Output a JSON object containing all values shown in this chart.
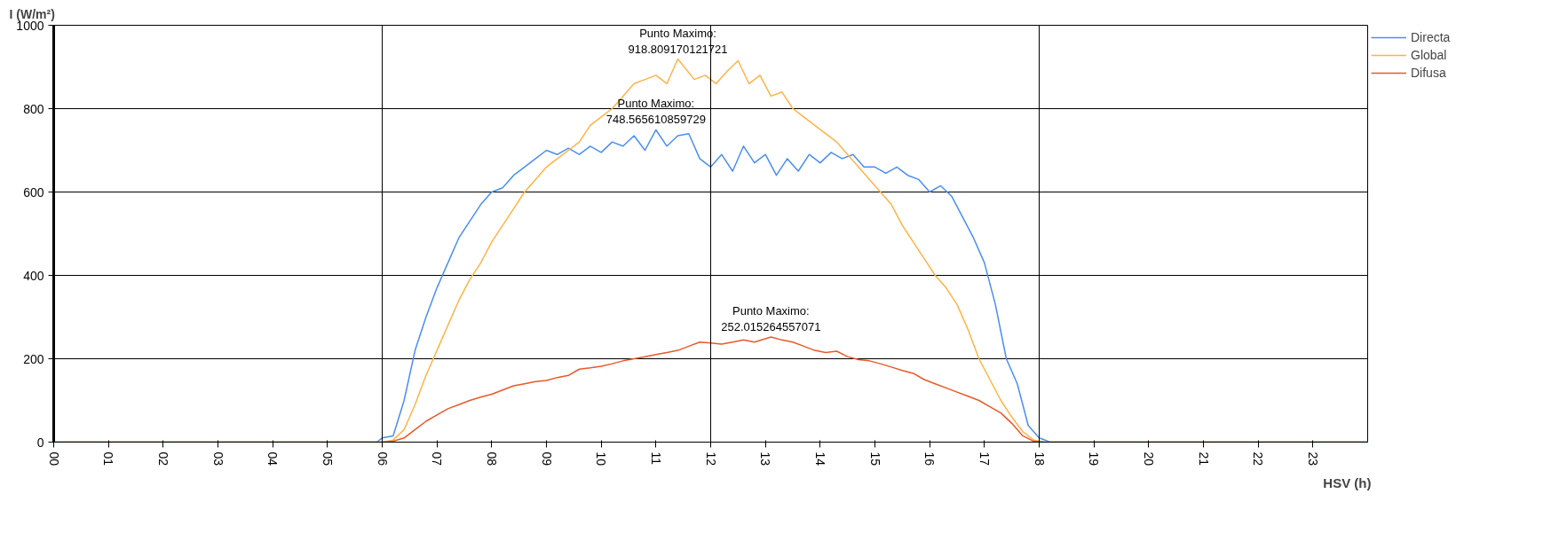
{
  "chart_data": {
    "type": "line",
    "xlabel": "HSV (h)",
    "ylabel": "I (W/m²)",
    "xlim": [
      0,
      24
    ],
    "ylim": [
      0,
      1000
    ],
    "xticks": [
      {
        "value": 0,
        "label": "00"
      },
      {
        "value": 1,
        "label": "01"
      },
      {
        "value": 2,
        "label": "02"
      },
      {
        "value": 3,
        "label": "03"
      },
      {
        "value": 4,
        "label": "04"
      },
      {
        "value": 5,
        "label": "05"
      },
      {
        "value": 6,
        "label": "06"
      },
      {
        "value": 7,
        "label": "07"
      },
      {
        "value": 8,
        "label": "08"
      },
      {
        "value": 9,
        "label": "09"
      },
      {
        "value": 10,
        "label": "10"
      },
      {
        "value": 11,
        "label": "11"
      },
      {
        "value": 12,
        "label": "12"
      },
      {
        "value": 13,
        "label": "13"
      },
      {
        "value": 14,
        "label": "14"
      },
      {
        "value": 15,
        "label": "15"
      },
      {
        "value": 16,
        "label": "16"
      },
      {
        "value": 17,
        "label": "17"
      },
      {
        "value": 18,
        "label": "18"
      },
      {
        "value": 19,
        "label": "19"
      },
      {
        "value": 20,
        "label": "20"
      },
      {
        "value": 21,
        "label": "21"
      },
      {
        "value": 22,
        "label": "22"
      },
      {
        "value": 23,
        "label": "23"
      }
    ],
    "yticks": [
      0,
      200,
      400,
      600,
      800,
      1000
    ],
    "grid": "y",
    "legend": "top right",
    "marker": "none",
    "line_style": "solid",
    "ref_lines": [
      {
        "axis": "x",
        "value": 6,
        "color": "#000000"
      },
      {
        "axis": "x",
        "value": 12,
        "color": "#000000"
      },
      {
        "axis": "x",
        "value": 18,
        "color": "#000000"
      }
    ],
    "annotations": [
      {
        "text": "Punto Maximo:\n918.809170121721",
        "x": 11.4,
        "y": 919
      },
      {
        "text": "Punto Maximo:\n748.565610859729",
        "x": 11.0,
        "y": 749
      },
      {
        "text": "Punto Maximo:\n252.015264557071",
        "x": 13.1,
        "y": 252
      }
    ],
    "series": [
      {
        "name": "Directa",
        "color": "#4a8ef0",
        "x": [
          0,
          5.9,
          6.0,
          6.2,
          6.4,
          6.6,
          6.8,
          7.0,
          7.2,
          7.4,
          7.6,
          7.8,
          8.0,
          8.2,
          8.4,
          8.6,
          8.8,
          9.0,
          9.2,
          9.4,
          9.6,
          9.8,
          10.0,
          10.2,
          10.4,
          10.6,
          10.8,
          11.0,
          11.2,
          11.4,
          11.6,
          11.8,
          12.0,
          12.2,
          12.4,
          12.6,
          12.8,
          13.0,
          13.2,
          13.4,
          13.6,
          13.8,
          14.0,
          14.2,
          14.4,
          14.6,
          14.8,
          15.0,
          15.2,
          15.4,
          15.6,
          15.8,
          16.0,
          16.2,
          16.4,
          16.6,
          16.8,
          17.0,
          17.2,
          17.4,
          17.6,
          17.8,
          18.0,
          18.2,
          24
        ],
        "values": [
          0,
          0,
          10,
          15,
          100,
          220,
          300,
          370,
          430,
          490,
          530,
          570,
          600,
          610,
          640,
          660,
          680,
          700,
          690,
          705,
          690,
          710,
          695,
          720,
          710,
          735,
          700,
          749,
          710,
          735,
          740,
          680,
          660,
          690,
          650,
          710,
          670,
          690,
          640,
          680,
          650,
          690,
          670,
          695,
          680,
          690,
          660,
          660,
          645,
          660,
          640,
          630,
          600,
          615,
          590,
          540,
          490,
          430,
          330,
          200,
          140,
          40,
          10,
          0,
          0
        ]
      },
      {
        "name": "Global",
        "color": "#ffb347",
        "x": [
          0,
          6.0,
          6.2,
          6.4,
          6.6,
          6.8,
          7.0,
          7.2,
          7.4,
          7.6,
          7.8,
          8.0,
          8.2,
          8.4,
          8.6,
          8.8,
          9.0,
          9.2,
          9.4,
          9.6,
          9.8,
          10.0,
          10.2,
          10.4,
          10.6,
          10.8,
          11.0,
          11.2,
          11.4,
          11.7,
          11.9,
          12.1,
          12.3,
          12.5,
          12.7,
          12.9,
          13.1,
          13.3,
          13.5,
          13.7,
          13.9,
          14.1,
          14.3,
          14.5,
          14.7,
          14.9,
          15.1,
          15.3,
          15.5,
          15.7,
          15.9,
          16.1,
          16.3,
          16.5,
          16.7,
          16.9,
          17.1,
          17.3,
          17.5,
          17.7,
          17.9,
          18.1,
          24
        ],
        "values": [
          0,
          0,
          5,
          30,
          90,
          160,
          220,
          280,
          340,
          390,
          430,
          480,
          520,
          560,
          600,
          630,
          660,
          680,
          700,
          720,
          760,
          780,
          800,
          830,
          860,
          870,
          880,
          860,
          919,
          870,
          880,
          860,
          890,
          915,
          860,
          880,
          830,
          840,
          800,
          780,
          760,
          740,
          720,
          690,
          660,
          630,
          600,
          570,
          520,
          480,
          440,
          400,
          370,
          330,
          270,
          200,
          150,
          100,
          60,
          25,
          5,
          0,
          0
        ]
      },
      {
        "name": "Difusa",
        "color": "#e8582a",
        "x": [
          0,
          6.0,
          6.2,
          6.4,
          6.6,
          6.8,
          7.0,
          7.2,
          7.4,
          7.6,
          7.8,
          8.0,
          8.2,
          8.4,
          8.6,
          8.8,
          9.0,
          9.2,
          9.4,
          9.6,
          9.8,
          10.0,
          10.2,
          10.4,
          10.6,
          10.8,
          11.0,
          11.2,
          11.4,
          11.6,
          11.8,
          12.0,
          12.2,
          12.4,
          12.6,
          12.8,
          13.1,
          13.3,
          13.5,
          13.7,
          13.9,
          14.1,
          14.3,
          14.5,
          14.7,
          14.9,
          15.1,
          15.3,
          15.5,
          15.7,
          15.9,
          16.1,
          16.3,
          16.5,
          16.7,
          16.9,
          17.1,
          17.3,
          17.5,
          17.7,
          17.9,
          18.1,
          24
        ],
        "values": [
          0,
          0,
          2,
          10,
          30,
          50,
          65,
          80,
          90,
          100,
          108,
          115,
          125,
          135,
          140,
          145,
          148,
          155,
          160,
          175,
          178,
          182,
          188,
          195,
          200,
          205,
          210,
          215,
          220,
          230,
          240,
          238,
          235,
          240,
          245,
          240,
          252,
          245,
          240,
          230,
          220,
          215,
          218,
          205,
          198,
          195,
          188,
          180,
          172,
          165,
          150,
          140,
          130,
          120,
          110,
          100,
          85,
          70,
          45,
          15,
          2,
          0,
          0
        ]
      }
    ]
  }
}
